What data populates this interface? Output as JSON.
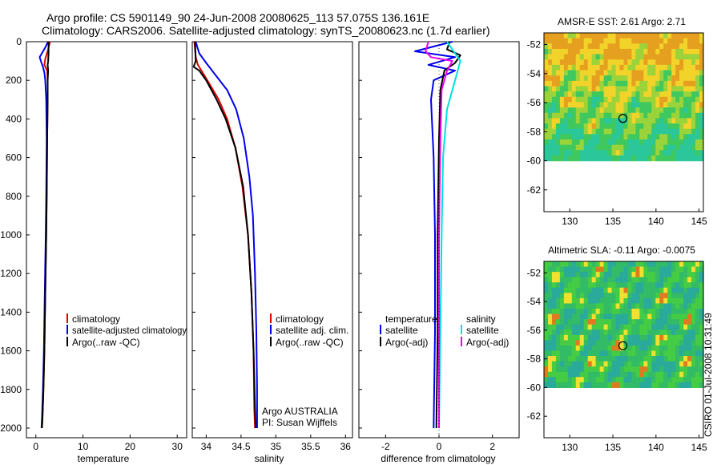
{
  "header": {
    "line1": "Argo profile: CS 5901149_90 24-Jun-2008 20080625_113 57.075S 136.161E",
    "line2": "Climatology: CARS2006. Satellite-adjusted climatology: synTS_20080623.nc (1.7d earlier)"
  },
  "colors": {
    "climatology": "#dd0000",
    "satellite": "#0000ee",
    "argo": "#000000",
    "salinity_satellite": "#00e0e0",
    "salinity_argo": "#ee00ee"
  },
  "depth_axis": {
    "min": 0,
    "max": 2050,
    "ticks": [
      0,
      200,
      400,
      600,
      800,
      1000,
      1200,
      1400,
      1600,
      1800,
      2000
    ]
  },
  "chart_data": [
    {
      "id": "temperature",
      "type": "line",
      "xlabel": "temperature",
      "xlim": [
        -2,
        32
      ],
      "xticks": [
        0,
        10,
        20,
        30
      ],
      "ylim": [
        2050,
        0
      ],
      "legend": [
        "climatology",
        "satellite-adjusted climatology",
        "Argo(..raw -QC)"
      ],
      "series": [
        {
          "name": "climatology",
          "color": "#dd0000",
          "points": [
            [
              3.0,
              0
            ],
            [
              2.6,
              40
            ],
            [
              2.0,
              90
            ],
            [
              1.8,
              120
            ],
            [
              2.4,
              150
            ],
            [
              2.5,
              200
            ],
            [
              2.5,
              300
            ],
            [
              2.4,
              500
            ],
            [
              2.3,
              800
            ],
            [
              2.2,
              1000
            ],
            [
              2.0,
              1300
            ],
            [
              1.8,
              1600
            ],
            [
              1.6,
              1800
            ],
            [
              1.4,
              1950
            ],
            [
              1.3,
              2000
            ]
          ]
        },
        {
          "name": "satellite-adjusted climatology",
          "color": "#0000ee",
          "points": [
            [
              2.6,
              0
            ],
            [
              2.0,
              30
            ],
            [
              0.8,
              80
            ],
            [
              1.2,
              110
            ],
            [
              1.5,
              130
            ],
            [
              1.8,
              160
            ],
            [
              2.0,
              200
            ],
            [
              2.2,
              300
            ],
            [
              2.3,
              500
            ],
            [
              2.2,
              800
            ],
            [
              2.1,
              1000
            ],
            [
              1.9,
              1300
            ],
            [
              1.7,
              1600
            ],
            [
              1.5,
              1800
            ],
            [
              1.3,
              1950
            ],
            [
              1.2,
              2000
            ]
          ]
        },
        {
          "name": "Argo(..raw -QC)",
          "color": "#000000",
          "points": [
            [
              2.7,
              0
            ],
            [
              2.7,
              60
            ],
            [
              2.6,
              100
            ],
            [
              2.5,
              120
            ],
            [
              2.6,
              150
            ],
            [
              2.5,
              200
            ],
            [
              2.5,
              300
            ],
            [
              2.4,
              500
            ],
            [
              2.3,
              800
            ],
            [
              2.2,
              1000
            ],
            [
              2.0,
              1300
            ],
            [
              1.8,
              1600
            ],
            [
              1.6,
              1800
            ],
            [
              1.4,
              1950
            ],
            [
              1.3,
              2000
            ]
          ]
        }
      ]
    },
    {
      "id": "salinity",
      "type": "line",
      "xlabel": "salinity",
      "xlim": [
        33.8,
        36.1
      ],
      "xticks": [
        34,
        34.5,
        35,
        35.5,
        36
      ],
      "ylim": [
        2050,
        0
      ],
      "legend": [
        "climatology",
        "satellite adj. clim.",
        "Argo(..raw -QC)"
      ],
      "annotation": [
        "Argo AUSTRALIA",
        "PI: Susan Wijffels"
      ],
      "series": [
        {
          "name": "climatology",
          "color": "#dd0000",
          "points": [
            [
              33.83,
              0
            ],
            [
              33.85,
              80
            ],
            [
              33.88,
              120
            ],
            [
              33.95,
              160
            ],
            [
              34.05,
              220
            ],
            [
              34.18,
              300
            ],
            [
              34.3,
              400
            ],
            [
              34.42,
              550
            ],
            [
              34.52,
              750
            ],
            [
              34.6,
              1000
            ],
            [
              34.65,
              1300
            ],
            [
              34.68,
              1600
            ],
            [
              34.69,
              1900
            ],
            [
              34.7,
              2000
            ]
          ]
        },
        {
          "name": "satellite adj. clim.",
          "color": "#0000ee",
          "points": [
            [
              33.85,
              0
            ],
            [
              33.9,
              60
            ],
            [
              34.0,
              110
            ],
            [
              34.15,
              180
            ],
            [
              34.3,
              250
            ],
            [
              34.43,
              350
            ],
            [
              34.54,
              500
            ],
            [
              34.62,
              700
            ],
            [
              34.67,
              900
            ],
            [
              34.7,
              1200
            ],
            [
              34.72,
              1500
            ],
            [
              34.73,
              1800
            ],
            [
              34.73,
              2000
            ]
          ]
        },
        {
          "name": "Argo(..raw -QC)",
          "color": "#000000",
          "points": [
            [
              33.84,
              0
            ],
            [
              33.85,
              100
            ],
            [
              33.82,
              130
            ],
            [
              33.9,
              150
            ],
            [
              34.0,
              200
            ],
            [
              34.15,
              300
            ],
            [
              34.28,
              400
            ],
            [
              34.42,
              550
            ],
            [
              34.53,
              750
            ],
            [
              34.6,
              1000
            ],
            [
              34.65,
              1300
            ],
            [
              34.68,
              1600
            ],
            [
              34.7,
              1900
            ],
            [
              34.71,
              2000
            ]
          ]
        }
      ]
    },
    {
      "id": "difference",
      "type": "line",
      "xlabel": "difference from climatology",
      "xlim": [
        -3,
        3
      ],
      "xticks": [
        -2,
        0,
        2
      ],
      "ylim": [
        2050,
        0
      ],
      "legend_left_title": "temperature",
      "legend_right_title": "salinity",
      "legend_left": [
        "satellite",
        "Argo(-adj)"
      ],
      "legend_right": [
        "satellite",
        "Argo(-adj)"
      ],
      "series": [
        {
          "name": "temperature satellite",
          "color": "#0000ee",
          "points": [
            [
              0.5,
              0
            ],
            [
              -0.9,
              50
            ],
            [
              0.6,
              80
            ],
            [
              -0.4,
              120
            ],
            [
              0.6,
              150
            ],
            [
              -0.2,
              200
            ],
            [
              -0.3,
              300
            ],
            [
              -0.2,
              600
            ],
            [
              -0.15,
              1000
            ],
            [
              -0.15,
              1500
            ],
            [
              -0.2,
              2000
            ]
          ]
        },
        {
          "name": "temperature Argo(-adj)",
          "color": "#000000",
          "points": [
            [
              0.4,
              0
            ],
            [
              0.3,
              40
            ],
            [
              0.8,
              70
            ],
            [
              0.6,
              110
            ],
            [
              0.2,
              150
            ],
            [
              0.05,
              250
            ],
            [
              0.0,
              500
            ],
            [
              -0.05,
              1000
            ],
            [
              -0.05,
              1500
            ],
            [
              -0.1,
              2000
            ]
          ]
        },
        {
          "name": "salinity satellite",
          "color": "#00e0e0",
          "points": [
            [
              0.3,
              0
            ],
            [
              0.6,
              60
            ],
            [
              0.8,
              100
            ],
            [
              0.6,
              200
            ],
            [
              0.3,
              350
            ],
            [
              0.15,
              600
            ],
            [
              0.1,
              1000
            ],
            [
              0.05,
              1500
            ],
            [
              0.0,
              2000
            ]
          ]
        },
        {
          "name": "salinity Argo(-adj)",
          "color": "#ee00ee",
          "points": [
            [
              -0.4,
              0
            ],
            [
              -0.5,
              50
            ],
            [
              -0.3,
              80
            ],
            [
              0.5,
              100
            ],
            [
              0.3,
              150
            ],
            [
              0.1,
              250
            ],
            [
              0.05,
              500
            ],
            [
              0.0,
              1000
            ],
            [
              0.0,
              1500
            ],
            [
              0.0,
              2000
            ]
          ]
        }
      ]
    },
    {
      "id": "sst-map",
      "type": "heatmap",
      "title": "AMSR-E SST: 2.61  Argo: 2.71",
      "xlim": [
        127,
        145.5
      ],
      "ylim": [
        -63.5,
        -51.2
      ],
      "xticks": [
        130,
        135,
        140,
        145
      ],
      "yticks": [
        -52,
        -54,
        -56,
        -58,
        -60,
        -62
      ],
      "marker": {
        "lon": 136.16,
        "lat": -57.08
      },
      "data_lat_min": -60
    },
    {
      "id": "sla-map",
      "type": "heatmap",
      "title": "Altimetric SLA: -0.11  Argo: -0.0075",
      "xlim": [
        127,
        145.5
      ],
      "ylim": [
        -63.5,
        -51.2
      ],
      "xticks": [
        130,
        135,
        140,
        145
      ],
      "yticks": [
        -52,
        -54,
        -56,
        -58,
        -60,
        -62
      ],
      "marker": {
        "lon": 136.16,
        "lat": -57.08
      },
      "data_lat_min": -60
    }
  ],
  "credit": "CSIRO 01-Jul-2008 10:31:49"
}
